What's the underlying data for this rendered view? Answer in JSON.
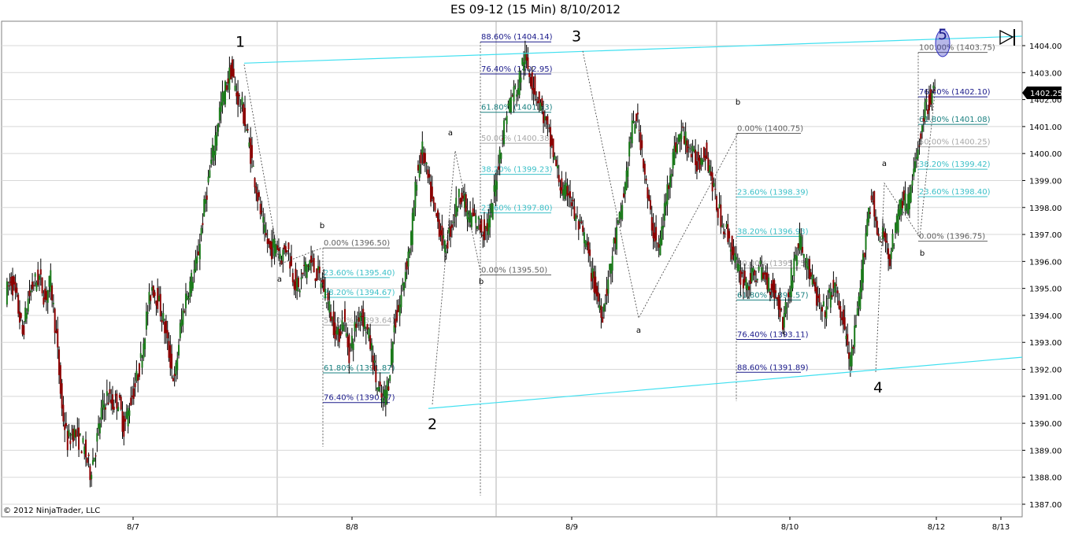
{
  "title": "ES 09-12 (15 Min)  8/10/2012",
  "copyright": "© 2012 NinjaTrader, LLC",
  "colors": {
    "up_candle": "#1a7a1a",
    "down_candle": "#8b0000",
    "wick": "#000000",
    "channel": "#40e0f0",
    "fib_dark": "#1a1a8a",
    "fib_teal": "#1a8080",
    "fib_light": "#a8a8a8",
    "fib_cyan": "#3cc0c8",
    "grid": "#d8d8d8",
    "price_label_bg": "#000000"
  },
  "chart_data": {
    "type": "candlestick",
    "instrument": "ES 09-12",
    "interval": "15 Min",
    "ylim": [
      1386.75,
      1404.5
    ],
    "y_ticks": [
      "1387.00",
      "1388.00",
      "1389.00",
      "1390.00",
      "1391.00",
      "1392.00",
      "1393.00",
      "1394.00",
      "1395.00",
      "1396.00",
      "1397.00",
      "1398.00",
      "1399.00",
      "1400.00",
      "1401.00",
      "1402.00",
      "1403.00",
      "1404.00"
    ],
    "x_labels": [
      "8/7",
      "8/8",
      "8/9",
      "8/10",
      "8/12",
      "8/13"
    ],
    "last_price": "1402.25",
    "wave_labels": [
      {
        "text": "1",
        "price": 1403.55
      },
      {
        "text": "2",
        "price": 1390.55
      },
      {
        "text": "3",
        "price": 1403.75
      },
      {
        "text": "4",
        "price": 1391.9
      },
      {
        "text": "5",
        "price": 1404.25
      }
    ],
    "sub_labels": [
      "a",
      "b",
      "a",
      "b",
      "a",
      "b",
      "a",
      "b"
    ],
    "fib_sets": [
      {
        "name": "fib-set-1",
        "levels": [
          {
            "text": "0.00% (1396.50)",
            "price": 1396.5
          },
          {
            "text": "23.60% (1395.40)",
            "price": 1395.4
          },
          {
            "text": "38.20% (1394.67)",
            "price": 1394.67
          },
          {
            "text": "50.00% (1393.64)",
            "price": 1393.64
          },
          {
            "text": "61.80% (1391.87)",
            "price": 1391.87
          },
          {
            "text": "76.40% (1390.77)",
            "price": 1390.77
          }
        ]
      },
      {
        "name": "fib-set-2",
        "levels": [
          {
            "text": "88.60% (1404.14)",
            "price": 1404.14
          },
          {
            "text": "76.40% (1402.95)",
            "price": 1402.95
          },
          {
            "text": "61.80% (1401.53)",
            "price": 1401.53
          },
          {
            "text": "50.00% (1400.38)",
            "price": 1400.38
          },
          {
            "text": "38.20% (1399.23)",
            "price": 1399.23
          },
          {
            "text": "23.60% (1397.80)",
            "price": 1397.8
          },
          {
            "text": "0.00% (1395.50)",
            "price": 1395.5
          }
        ]
      },
      {
        "name": "fib-set-3",
        "levels": [
          {
            "text": "0.00% (1400.75)",
            "price": 1400.75
          },
          {
            "text": "23.60% (1398.39)",
            "price": 1398.39
          },
          {
            "text": "38.20% (1396.93)",
            "price": 1396.93
          },
          {
            "text": "50.00% (1395.75)",
            "price": 1395.75
          },
          {
            "text": "61.80% (1394.57)",
            "price": 1394.57
          },
          {
            "text": "76.40% (1393.11)",
            "price": 1393.11
          },
          {
            "text": "88.60% (1391.89)",
            "price": 1391.89
          }
        ]
      },
      {
        "name": "fib-set-4",
        "levels": [
          {
            "text": "100.00% (1403.75)",
            "price": 1403.75
          },
          {
            "text": "76.40% (1402.10)",
            "price": 1402.1
          },
          {
            "text": "61.80% (1401.08)",
            "price": 1401.08
          },
          {
            "text": "50.00% (1400.25)",
            "price": 1400.25
          },
          {
            "text": "38.20% (1399.42)",
            "price": 1399.42
          },
          {
            "text": "23.60% (1398.40)",
            "price": 1398.4
          },
          {
            "text": "0.00% (1396.75)",
            "price": 1396.75
          }
        ]
      }
    ],
    "channel_lines": [
      {
        "name": "upper-channel",
        "from": 1403.35,
        "to": 1404.35
      },
      {
        "name": "lower-channel",
        "from": 1390.55,
        "to": 1392.45
      }
    ],
    "price_path": [
      1394.8,
      1395.3,
      1394.5,
      1393.3,
      1394.6,
      1395.2,
      1395.4,
      1394.6,
      1395.3,
      1393.2,
      1390.5,
      1389.3,
      1389.7,
      1389.4,
      1389.0,
      1388.2,
      1389.1,
      1390.4,
      1391.0,
      1390.7,
      1390.9,
      1389.8,
      1390.7,
      1391.4,
      1392.3,
      1393.9,
      1395.1,
      1394.6,
      1393.8,
      1392.6,
      1391.5,
      1393.5,
      1394.7,
      1395.3,
      1396.0,
      1397.6,
      1399.0,
      1400.3,
      1401.6,
      1402.4,
      1403.1,
      1402.2,
      1401.7,
      1400.6,
      1399.4,
      1398.1,
      1397.0,
      1396.4,
      1396.7,
      1396.2,
      1396.6,
      1395.5,
      1394.9,
      1395.7,
      1396.0,
      1395.6,
      1395.3,
      1394.7,
      1393.8,
      1393.2,
      1393.9,
      1392.6,
      1393.5,
      1394.2,
      1393.6,
      1392.7,
      1391.3,
      1390.8,
      1391.6,
      1393.6,
      1394.4,
      1395.7,
      1396.9,
      1399.2,
      1400.1,
      1399.0,
      1397.9,
      1397.3,
      1396.4,
      1397.2,
      1398.1,
      1398.6,
      1397.7,
      1397.6,
      1397.4,
      1397.1,
      1397.5,
      1398.9,
      1400.4,
      1401.6,
      1402.2,
      1402.5,
      1403.6,
      1403.0,
      1402.3,
      1401.8,
      1401.0,
      1400.2,
      1399.3,
      1398.4,
      1398.7,
      1397.7,
      1397.2,
      1396.7,
      1395.6,
      1394.7,
      1394.1,
      1395.3,
      1396.6,
      1397.5,
      1398.8,
      1400.7,
      1401.4,
      1400.2,
      1398.3,
      1397.1,
      1396.4,
      1397.9,
      1399.4,
      1400.3,
      1400.8,
      1400.4,
      1399.9,
      1399.6,
      1400.2,
      1399.5,
      1398.3,
      1397.6,
      1397.1,
      1396.4,
      1395.7,
      1395.3,
      1395.2,
      1395.5,
      1395.7,
      1395.3,
      1395.1,
      1394.6,
      1393.8,
      1394.7,
      1396.0,
      1396.8,
      1396.1,
      1395.4,
      1394.6,
      1394.0,
      1394.5,
      1395.1,
      1394.4,
      1393.4,
      1392.2,
      1393.6,
      1395.4,
      1397.7,
      1398.4,
      1396.6,
      1397.0,
      1396.2,
      1397.1,
      1398.4,
      1398.1,
      1398.9,
      1400.2,
      1401.4,
      1402.0,
      1402.3
    ]
  }
}
